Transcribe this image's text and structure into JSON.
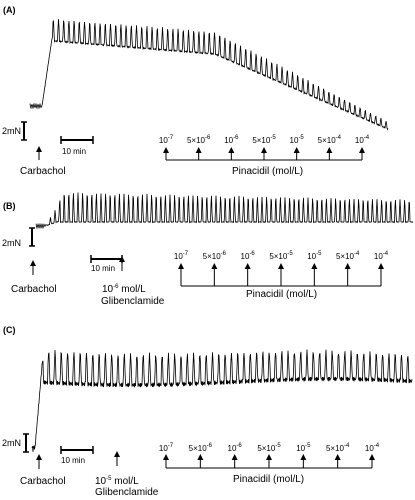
{
  "figure": {
    "panels": [
      {
        "label": "(A)",
        "scale_bar": "2mN",
        "time_bar": "10 min",
        "agonist": "Carbachol",
        "antagonist": null,
        "doses": [
          {
            "base": "10",
            "exp": "-7"
          },
          {
            "base": "5×10",
            "exp": "-6"
          },
          {
            "base": "10",
            "exp": "-6"
          },
          {
            "base": "5×10",
            "exp": "-5"
          },
          {
            "base": "10",
            "exp": "-5"
          },
          {
            "base": "5×10",
            "exp": "-4"
          },
          {
            "base": "10",
            "exp": "-4"
          }
        ],
        "drug_label": "Pinacidil (mol/L)"
      },
      {
        "label": "(B)",
        "scale_bar": "2mN",
        "time_bar": "10 min",
        "agonist": "Carbachol",
        "antagonist": {
          "line1_base": "10",
          "line1_exp": "-6",
          "line1_unit": " mol/L",
          "line2": "Glibenclamide"
        },
        "doses": [
          {
            "base": "10",
            "exp": "-7"
          },
          {
            "base": "5×10",
            "exp": "-6"
          },
          {
            "base": "10",
            "exp": "-6"
          },
          {
            "base": "5×10",
            "exp": "-5"
          },
          {
            "base": "10",
            "exp": "-5"
          },
          {
            "base": "5×10",
            "exp": "-4"
          },
          {
            "base": "10",
            "exp": "-4"
          }
        ],
        "drug_label": "Pinacidil (mol/L)"
      },
      {
        "label": "(C)",
        "scale_bar": "2mN",
        "time_bar": "10 min",
        "agonist": "Carbachol",
        "antagonist": {
          "line1_base": "10",
          "line1_exp": "-5",
          "line1_unit": " mol/L",
          "line2": "Glibenclamide"
        },
        "doses": [
          {
            "base": "10",
            "exp": "-7"
          },
          {
            "base": "5×10",
            "exp": "-6"
          },
          {
            "base": "10",
            "exp": "-6"
          },
          {
            "base": "5×10",
            "exp": "-5"
          },
          {
            "base": "10",
            "exp": "-5"
          },
          {
            "base": "5×10",
            "exp": "-4"
          },
          {
            "base": "10",
            "exp": "-4"
          }
        ],
        "drug_label": "Pinacidil (mol/L)"
      }
    ],
    "trace_color": "#000000"
  }
}
